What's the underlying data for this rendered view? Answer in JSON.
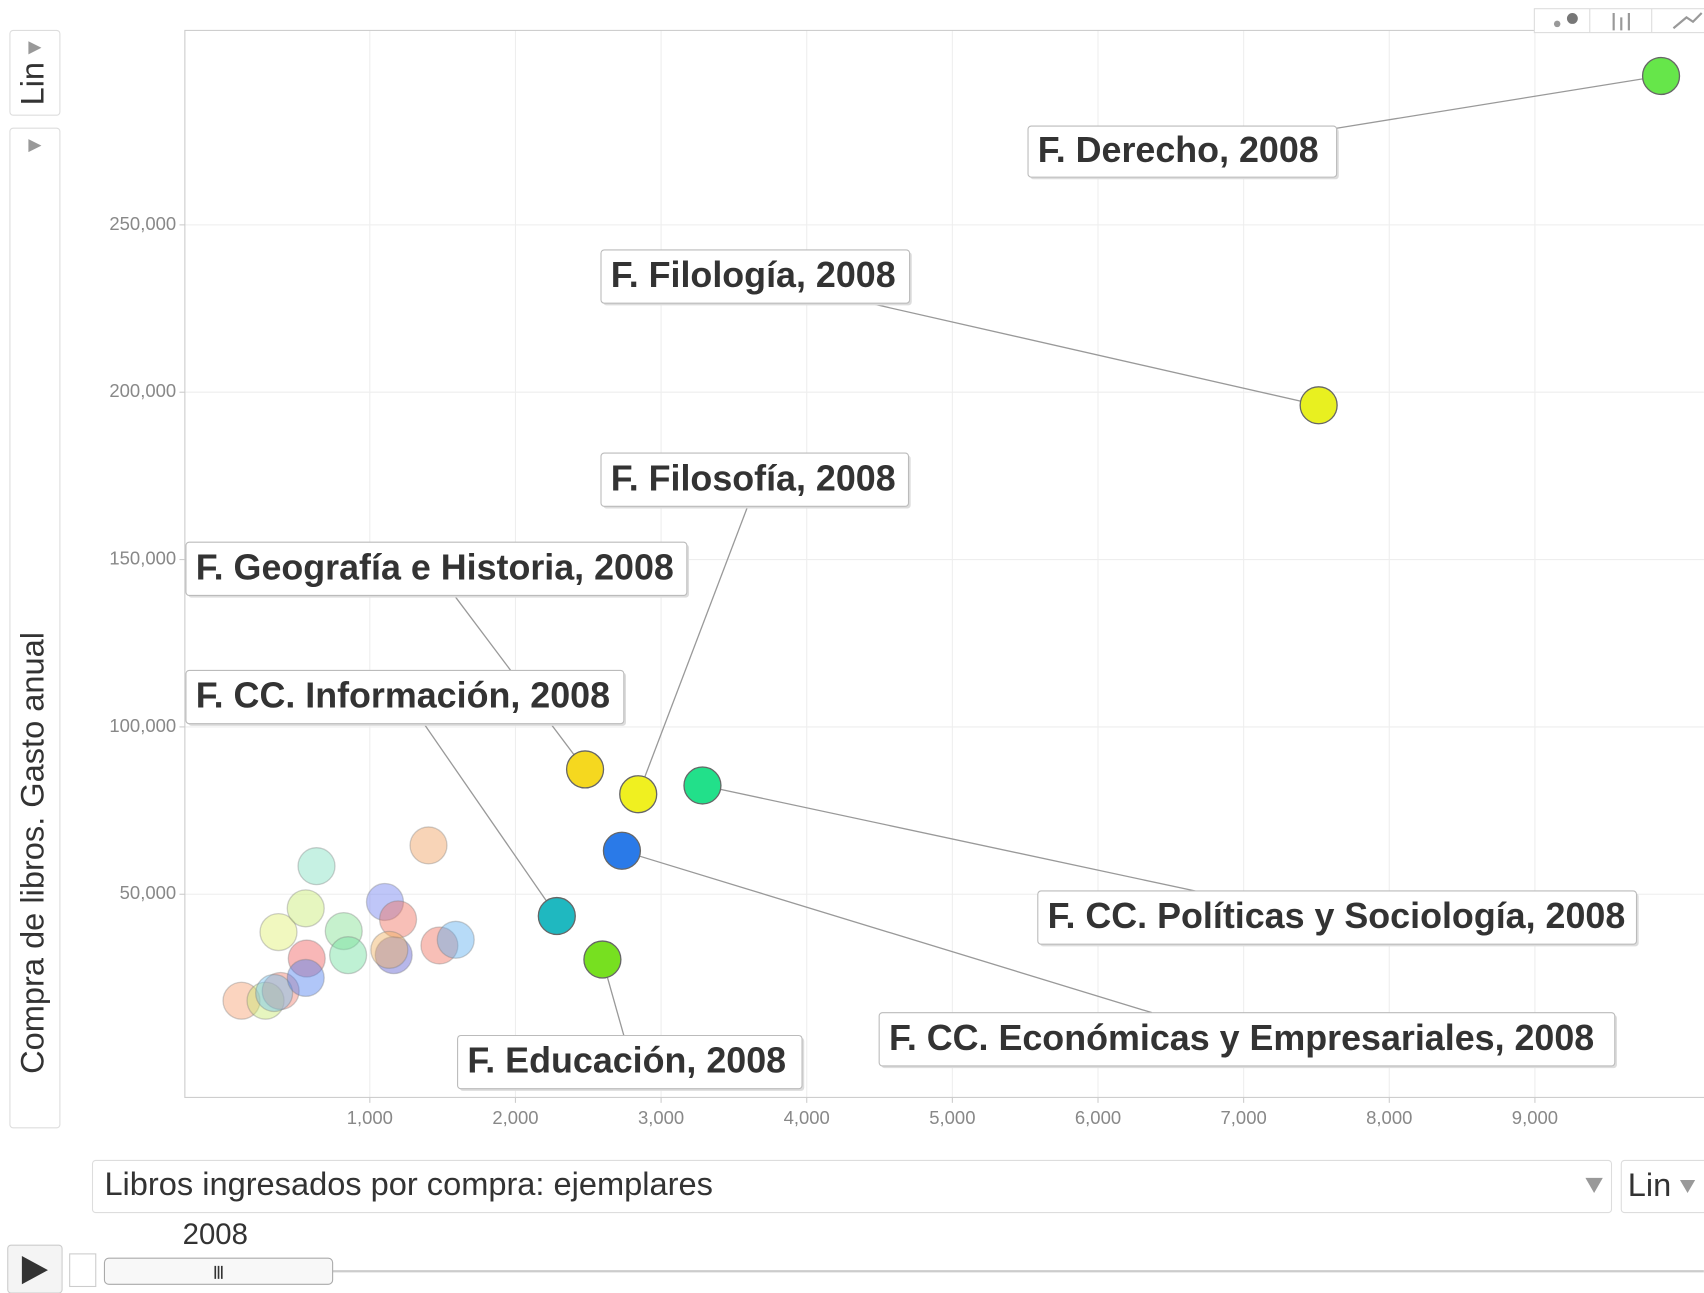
{
  "chart_data": {
    "type": "scatter",
    "y_label": "Compra de libros. Gasto anual",
    "x_label": "Libros ingresados por compra: ejemplares",
    "y_scale_label": "Lin",
    "x_scale_label": "Lin",
    "time": "2008",
    "labels": [
      "F. Derecho, 2008",
      "F. Filología, 2008",
      "F. Filosofía, 2008",
      "F. Geografía e Historia, 2008",
      "F. CC. Información, 2008",
      "F. Educación, 2008",
      "F. CC. Políticas y Sociología, 2008",
      "F. CC. Económicas y Empresariales, 2008",
      null,
      null,
      null,
      null,
      null,
      null,
      null,
      null,
      null,
      null,
      null,
      null,
      null,
      null,
      null,
      null,
      null,
      null
    ],
    "x": [
      9866,
      7515,
      2843,
      2478,
      2284,
      2597,
      3284,
      2731,
      119,
      284,
      388,
      343,
      373,
      560,
      634,
      567,
      560,
      821,
      851,
      1104,
      1194,
      1164,
      1134,
      1403,
      1478,
      1590
    ],
    "y": [
      294500,
      196100,
      79900,
      87300,
      43500,
      30500,
      82500,
      63000,
      18200,
      18200,
      21100,
      20500,
      38700,
      45800,
      58400,
      30800,
      25000,
      39000,
      31800,
      47700,
      42500,
      31800,
      33400,
      64600,
      34700,
      36400
    ],
    "colors": [
      "#66e64a",
      "#e8f020",
      "#f0f020",
      "#f5d81f",
      "#1fb8c0",
      "#77e020",
      "#22e08a",
      "#2a7ae8",
      "#f7a070",
      "#c8e870",
      "#f08070",
      "#70c0f0",
      "#e0f070",
      "#c8ec70",
      "#80e0c0",
      "#f06060",
      "#5080f0",
      "#80e090",
      "#70e0a0",
      "#7080f0",
      "#f07060",
      "#6060d0",
      "#f0b060",
      "#f0a060",
      "#f07060",
      "#60b0f0"
    ],
    "xlim": [
      -270,
      10160
    ],
    "ylim": [
      -10700,
      308100
    ],
    "xticks": [
      {
        "value": 1000,
        "label": "1,000"
      },
      {
        "value": 2000,
        "label": "2,000"
      },
      {
        "value": 3000,
        "label": "3,000"
      },
      {
        "value": 4000,
        "label": "4,000"
      },
      {
        "value": 5000,
        "label": "5,000"
      },
      {
        "value": 6000,
        "label": "6,000"
      },
      {
        "value": 7000,
        "label": "7,000"
      },
      {
        "value": 8000,
        "label": "8,000"
      },
      {
        "value": 9000,
        "label": "9,000"
      }
    ],
    "yticks": [
      {
        "value": 50000,
        "label": "50,000"
      },
      {
        "value": 100000,
        "label": "100,000"
      },
      {
        "value": 150000,
        "label": "150,000"
      },
      {
        "value": 200000,
        "label": "200,000"
      },
      {
        "value": 250000,
        "label": "250,000"
      }
    ],
    "grid": true
  }
}
